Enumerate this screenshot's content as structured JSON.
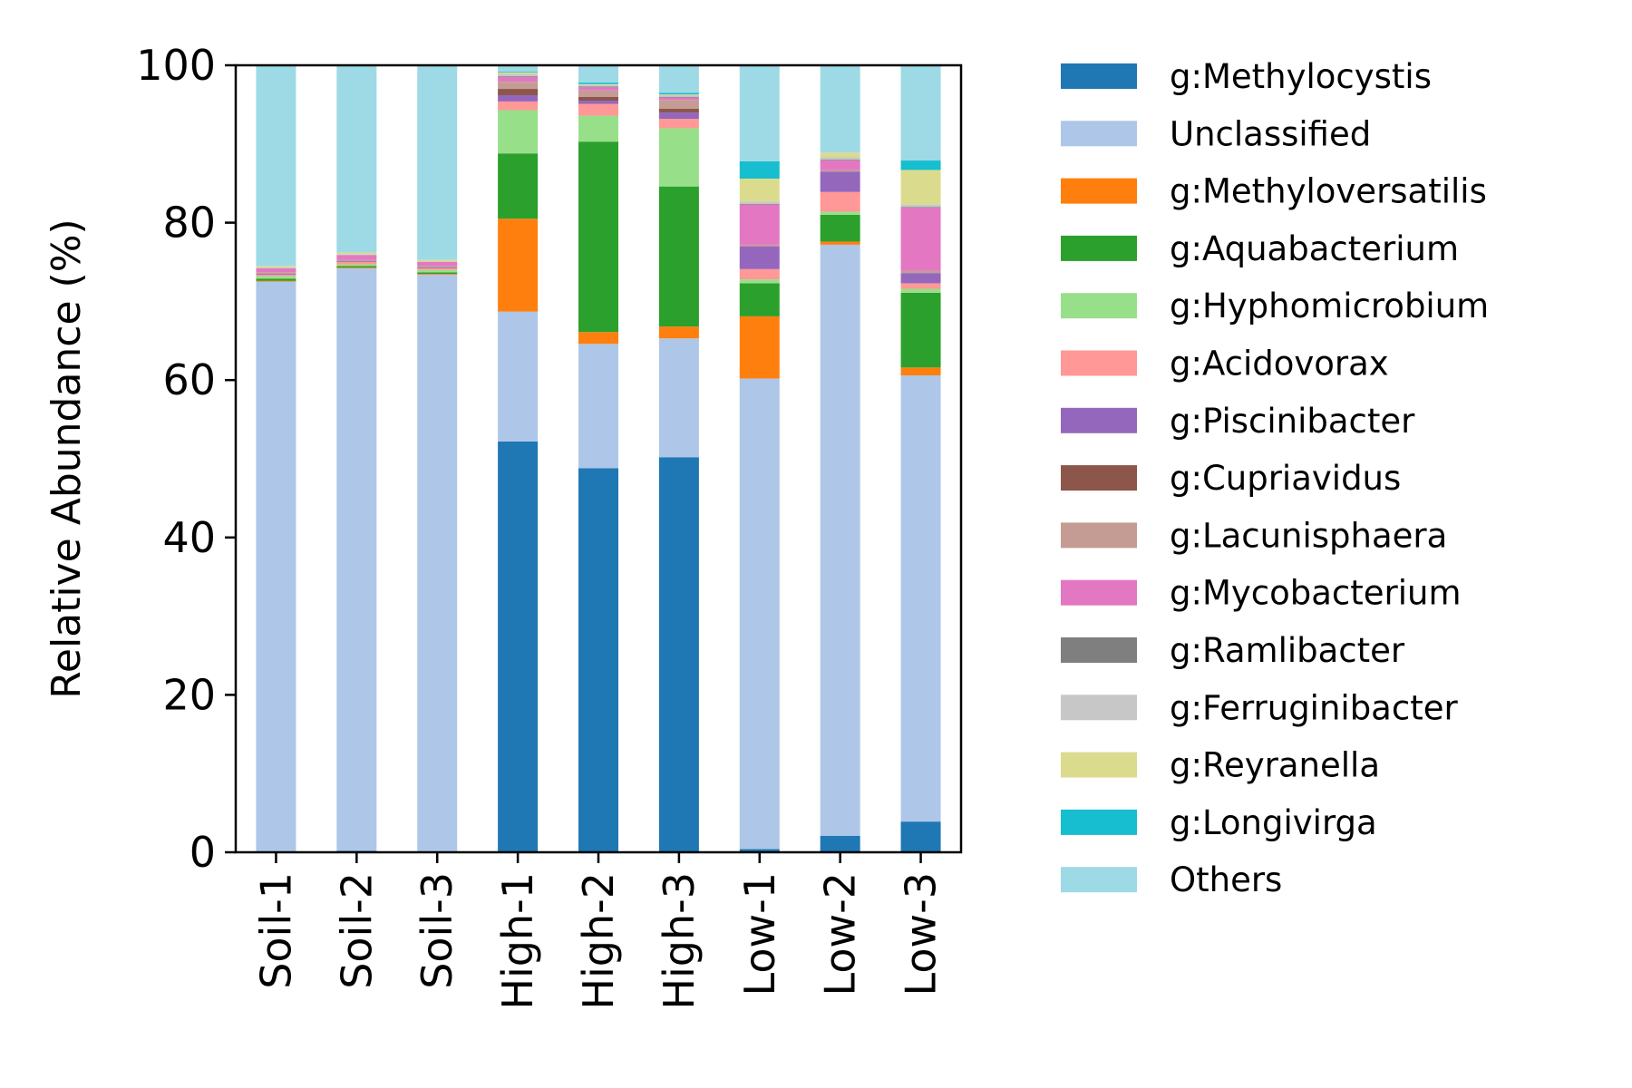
{
  "chart_data": {
    "type": "bar",
    "stacked": true,
    "ylabel": "Relative Abundance (%)",
    "xlabel": "",
    "ylim": [
      0,
      100
    ],
    "yticks": [
      0,
      20,
      40,
      60,
      80,
      100
    ],
    "legend_position": "right",
    "categories": [
      "Soil-1",
      "Soil-2",
      "Soil-3",
      "High-1",
      "High-2",
      "High-3",
      "Low-1",
      "Low-2",
      "Low-3"
    ],
    "series": [
      {
        "name": "g:Methylocystis",
        "color": "#1f77b4",
        "values": [
          0.1,
          0.2,
          0.1,
          52.2,
          48.8,
          50.2,
          0.4,
          2.1,
          3.9
        ]
      },
      {
        "name": "Unclassified",
        "color": "#aec7e8",
        "values": [
          72.4,
          74.0,
          73.3,
          16.5,
          15.8,
          15.1,
          59.8,
          75.1,
          56.7
        ]
      },
      {
        "name": "g:Methyloversatilis",
        "color": "#ff7f0e",
        "values": [
          0.1,
          0.1,
          0.1,
          11.8,
          1.5,
          1.5,
          7.9,
          0.4,
          1.0
        ]
      },
      {
        "name": "g:Aquabacterium",
        "color": "#2ca02c",
        "values": [
          0.3,
          0.2,
          0.2,
          8.3,
          24.2,
          17.8,
          4.2,
          3.4,
          9.5
        ]
      },
      {
        "name": "g:Hyphomicrobium",
        "color": "#98df8a",
        "values": [
          0.3,
          0.2,
          0.3,
          5.5,
          3.3,
          7.4,
          0.5,
          0.4,
          0.5
        ]
      },
      {
        "name": "g:Acidovorax",
        "color": "#ff9896",
        "values": [
          0.2,
          0.3,
          0.2,
          1.1,
          1.5,
          1.2,
          1.3,
          2.5,
          0.7
        ]
      },
      {
        "name": "g:Piscinibacter",
        "color": "#9467bd",
        "values": [
          0.1,
          0.1,
          0.1,
          0.8,
          0.4,
          0.8,
          2.9,
          2.6,
          1.3
        ]
      },
      {
        "name": "g:Cupriavidus",
        "color": "#8c564b",
        "values": [
          0.0,
          0.0,
          0.0,
          0.8,
          0.5,
          0.5,
          0.0,
          0.0,
          0.0
        ]
      },
      {
        "name": "g:Lacunisphaera",
        "color": "#c49c94",
        "values": [
          0.2,
          0.2,
          0.2,
          0.9,
          0.8,
          1.1,
          0.2,
          0.2,
          0.3
        ]
      },
      {
        "name": "g:Mycobacterium",
        "color": "#e377c2",
        "values": [
          0.5,
          0.6,
          0.5,
          0.6,
          0.4,
          0.3,
          5.1,
          1.2,
          8.0
        ]
      },
      {
        "name": "g:Ramlibacter",
        "color": "#7f7f7f",
        "values": [
          0.0,
          0.0,
          0.0,
          0.1,
          0.1,
          0.1,
          0.1,
          0.1,
          0.1
        ]
      },
      {
        "name": "g:Ferruginibacter",
        "color": "#c7c7c7",
        "values": [
          0.1,
          0.1,
          0.1,
          0.3,
          0.2,
          0.2,
          0.3,
          0.3,
          0.3
        ]
      },
      {
        "name": "g:Reyranella",
        "color": "#dbdb8d",
        "values": [
          0.2,
          0.2,
          0.2,
          0.2,
          0.1,
          0.1,
          2.9,
          0.6,
          4.4
        ]
      },
      {
        "name": "g:Longivirga",
        "color": "#17becf",
        "values": [
          0.0,
          0.0,
          0.0,
          0.1,
          0.2,
          0.2,
          2.2,
          0.0,
          1.2
        ]
      },
      {
        "name": "Others",
        "color": "#9edae5",
        "values": [
          25.5,
          23.8,
          24.7,
          0.8,
          2.2,
          3.5,
          12.2,
          11.1,
          12.1
        ]
      }
    ]
  }
}
